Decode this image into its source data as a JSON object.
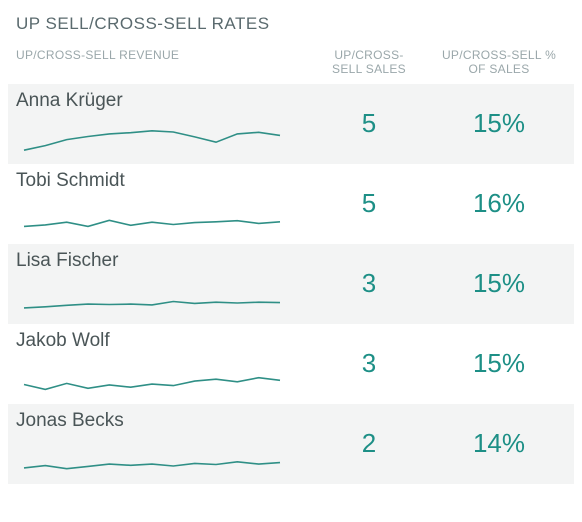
{
  "title": "UP SELL/CROSS-SELL RATES",
  "columns": {
    "revenue": "UP/CROSS-SELL REVENUE",
    "sales": "UP/CROSS-SELL SALES",
    "pct": "UP/CROSS-SELL % OF SALES"
  },
  "style": {
    "title_color": "#5a6a6e",
    "title_fontsize": 17,
    "header_color": "#9aa7aa",
    "header_fontsize": 12,
    "name_color": "#4a5557",
    "name_fontsize": 19,
    "metric_color": "#1d8f86",
    "metric_fontsize": 26,
    "row_bg_alt": "#f3f4f4",
    "row_bg": "#ffffff",
    "spark_line_color": "#2f8f86",
    "spark_line_width": 1.6,
    "spark_width": 260,
    "spark_height": 42,
    "spark_y_min": 0,
    "spark_y_max": 10
  },
  "rows": [
    {
      "name": "Anna Krüger",
      "sales": "5",
      "pct": "15%",
      "alt": true,
      "spark": [
        1.0,
        2.2,
        3.8,
        4.6,
        5.3,
        5.6,
        6.1,
        5.8,
        4.5,
        3.1,
        5.3,
        5.7,
        4.9
      ]
    },
    {
      "name": "Tobi Schmidt",
      "sales": "5",
      "pct": "16%",
      "alt": false,
      "spark": [
        2.0,
        2.4,
        3.1,
        2.0,
        3.6,
        2.3,
        3.1,
        2.5,
        3.0,
        3.2,
        3.5,
        2.8,
        3.2
      ]
    },
    {
      "name": "Lisa Fischer",
      "sales": "3",
      "pct": "15%",
      "alt": true,
      "spark": [
        1.6,
        1.9,
        2.3,
        2.6,
        2.5,
        2.6,
        2.4,
        3.3,
        2.8,
        3.1,
        2.9,
        3.1,
        3.0
      ]
    },
    {
      "name": "Jakob Wolf",
      "sales": "3",
      "pct": "15%",
      "alt": false,
      "spark": [
        2.5,
        1.2,
        2.8,
        1.5,
        2.4,
        1.8,
        2.6,
        2.2,
        3.4,
        3.9,
        3.2,
        4.3,
        3.6
      ]
    },
    {
      "name": "Jonas Becks",
      "sales": "2",
      "pct": "14%",
      "alt": true,
      "spark": [
        1.6,
        2.2,
        1.4,
        2.0,
        2.6,
        2.3,
        2.6,
        2.1,
        2.8,
        2.5,
        3.2,
        2.6,
        3.0
      ]
    }
  ]
}
